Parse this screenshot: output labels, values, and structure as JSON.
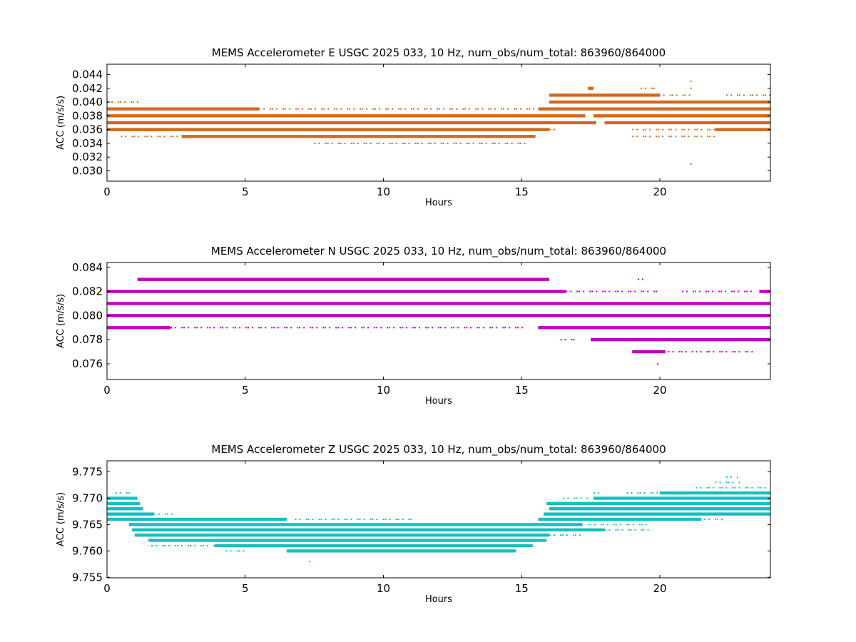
{
  "chart_data": [
    {
      "type": "scatter",
      "title": "MEMS Accelerometer E USGC 2025 033, 10 Hz, num_obs/num_total: 863960/864000",
      "xlabel": "Hours",
      "ylabel": "ACC (m/s/s)",
      "xlim": [
        0,
        24
      ],
      "ylim": [
        0.0285,
        0.0455
      ],
      "x_ticks": [
        0,
        5,
        10,
        15,
        20
      ],
      "y_ticks": [
        0.03,
        0.032,
        0.034,
        0.036,
        0.038,
        0.04,
        0.042,
        0.044
      ],
      "y_tick_decimals": 3,
      "color": "#d2691e",
      "grid": false,
      "series": [
        {
          "segments": [
            {
              "y": 0.039,
              "x": [
                [
                  0,
                  5.5,
                  "dense"
                ],
                [
                  5.5,
                  15.5,
                  "sparse"
                ],
                [
                  15.6,
                  24,
                  "dense"
                ]
              ]
            },
            {
              "y": 0.038,
              "x": [
                [
                  0,
                  17.3,
                  "dense"
                ],
                [
                  17.6,
                  24,
                  "dense"
                ]
              ]
            },
            {
              "y": 0.037,
              "x": [
                [
                  0,
                  17.7,
                  "dense"
                ],
                [
                  18.0,
                  24,
                  "dense"
                ]
              ]
            },
            {
              "y": 0.036,
              "x": [
                [
                  0,
                  16.0,
                  "dense"
                ],
                [
                  16.0,
                  16.3,
                  "sparse"
                ],
                [
                  19.0,
                  22.5,
                  "sparse"
                ],
                [
                  22.0,
                  24,
                  "dense"
                ]
              ]
            },
            {
              "y": 0.04,
              "x": [
                [
                  0,
                  1.3,
                  "sparse"
                ],
                [
                  16.0,
                  24,
                  "dense"
                ]
              ]
            },
            {
              "y": 0.035,
              "x": [
                [
                  0.5,
                  2.7,
                  "sparse"
                ],
                [
                  2.7,
                  15.5,
                  "dense"
                ],
                [
                  19.0,
                  22.0,
                  "sparse"
                ]
              ]
            },
            {
              "y": 0.041,
              "x": [
                [
                  16.0,
                  20.0,
                  "dense"
                ],
                [
                  19.5,
                  21.2,
                  "sparse"
                ],
                [
                  22.4,
                  24,
                  "sparse"
                ]
              ]
            },
            {
              "y": 0.034,
              "x": [
                [
                  7.5,
                  15.2,
                  "sparse"
                ]
              ]
            },
            {
              "y": 0.042,
              "x": [
                [
                  17.4,
                  17.6,
                  "dense"
                ],
                [
                  19.3,
                  19.9,
                  "sparse"
                ],
                [
                  21.1,
                  21.2,
                  "sparse"
                ]
              ]
            },
            {
              "y": 0.043,
              "x": [
                [
                  21.1,
                  21.2,
                  "sparse"
                ]
              ]
            },
            {
              "y": 0.031,
              "x": [
                [
                  21.1,
                  21.2,
                  "sparse"
                ]
              ]
            }
          ]
        }
      ]
    },
    {
      "type": "scatter",
      "title": "MEMS Accelerometer N USGC 2025 033, 10 Hz, num_obs/num_total: 863960/864000",
      "xlabel": "Hours",
      "ylabel": "ACC (m/s/s)",
      "xlim": [
        0,
        24
      ],
      "ylim": [
        0.0747,
        0.0844
      ],
      "x_ticks": [
        0,
        5,
        10,
        15,
        20
      ],
      "y_ticks": [
        0.076,
        0.078,
        0.08,
        0.082,
        0.084
      ],
      "y_tick_decimals": 3,
      "color": "#bf00bf",
      "grid": false,
      "series": [
        {
          "segments": [
            {
              "y": 0.083,
              "x": [
                [
                  1.1,
                  16.0,
                  "dense"
                ],
                [
                  19.2,
                  19.5,
                  "sparse"
                ]
              ]
            },
            {
              "y": 0.082,
              "x": [
                [
                  0,
                  16.6,
                  "dense"
                ],
                [
                  16.6,
                  20.0,
                  "sparse"
                ],
                [
                  20.8,
                  23.5,
                  "sparse"
                ],
                [
                  23.6,
                  24,
                  "dense"
                ]
              ]
            },
            {
              "y": 0.081,
              "x": [
                [
                  0,
                  24,
                  "dense"
                ]
              ]
            },
            {
              "y": 0.08,
              "x": [
                [
                  0,
                  24,
                  "dense"
                ]
              ]
            },
            {
              "y": 0.079,
              "x": [
                [
                  0,
                  2.3,
                  "dense"
                ],
                [
                  2.3,
                  15.0,
                  "sparse"
                ],
                [
                  15.6,
                  24,
                  "dense"
                ]
              ]
            },
            {
              "y": 0.078,
              "x": [
                [
                  16.4,
                  17.0,
                  "sparse"
                ],
                [
                  17.5,
                  24,
                  "dense"
                ]
              ]
            },
            {
              "y": 0.077,
              "x": [
                [
                  19.0,
                  20.2,
                  "dense"
                ],
                [
                  20.3,
                  21.2,
                  "sparse"
                ],
                [
                  21.3,
                  23.4,
                  "sparse"
                ]
              ]
            },
            {
              "y": 0.076,
              "x": [
                [
                  19.9,
                  20.0,
                  "sparse"
                ]
              ]
            }
          ]
        }
      ]
    },
    {
      "type": "scatter",
      "title": "MEMS Accelerometer Z USGC 2025 033, 10 Hz, num_obs/num_total: 863960/864000",
      "xlabel": "Hours",
      "ylabel": "ACC (m/s/s)",
      "xlim": [
        0,
        24
      ],
      "ylim": [
        9.7549,
        9.7771
      ],
      "x_ticks": [
        0,
        5,
        10,
        15,
        20
      ],
      "y_ticks": [
        9.755,
        9.76,
        9.765,
        9.77,
        9.775
      ],
      "y_tick_decimals": 3,
      "color": "#17bfbf",
      "grid": false,
      "series": [
        {
          "segments": [
            {
              "y": 9.774,
              "x": [
                [
                  22.4,
                  22.8,
                  "sparse"
                ]
              ]
            },
            {
              "y": 9.773,
              "x": [
                [
                  22.0,
                  22.9,
                  "sparse"
                ]
              ]
            },
            {
              "y": 9.772,
              "x": [
                [
                  21.3,
                  24,
                  "sparse"
                ]
              ]
            },
            {
              "y": 9.771,
              "x": [
                [
                  0.3,
                  0.9,
                  "sparse"
                ],
                [
                  17.6,
                  17.8,
                  "sparse"
                ],
                [
                  18.8,
                  20.0,
                  "sparse"
                ],
                [
                  20.0,
                  24,
                  "dense"
                ]
              ]
            },
            {
              "y": 9.77,
              "x": [
                [
                  0,
                  1.1,
                  "dense"
                ],
                [
                  16.5,
                  17.4,
                  "sparse"
                ],
                [
                  17.6,
                  24,
                  "dense"
                ]
              ]
            },
            {
              "y": 9.769,
              "x": [
                [
                  0,
                  1.2,
                  "dense"
                ],
                [
                  15.9,
                  24,
                  "dense"
                ]
              ]
            },
            {
              "y": 9.768,
              "x": [
                [
                  0,
                  1.3,
                  "dense"
                ],
                [
                  16.0,
                  24,
                  "dense"
                ]
              ]
            },
            {
              "y": 9.767,
              "x": [
                [
                  0,
                  1.7,
                  "dense"
                ],
                [
                  1.7,
                  2.4,
                  "sparse"
                ],
                [
                  15.8,
                  24,
                  "dense"
                ]
              ]
            },
            {
              "y": 9.766,
              "x": [
                [
                  0,
                  6.5,
                  "dense"
                ],
                [
                  6.8,
                  11.0,
                  "sparse"
                ],
                [
                  15.6,
                  21.5,
                  "dense"
                ],
                [
                  21.6,
                  22.4,
                  "sparse"
                ]
              ]
            },
            {
              "y": 9.765,
              "x": [
                [
                  0.8,
                  17.2,
                  "dense"
                ],
                [
                  17.0,
                  19.5,
                  "sparse"
                ]
              ]
            },
            {
              "y": 9.764,
              "x": [
                [
                  0.9,
                  18.0,
                  "dense"
                ],
                [
                  18.0,
                  19.6,
                  "sparse"
                ]
              ]
            },
            {
              "y": 9.763,
              "x": [
                [
                  1.0,
                  16.0,
                  "dense"
                ],
                [
                  16.0,
                  17.2,
                  "sparse"
                ]
              ]
            },
            {
              "y": 9.762,
              "x": [
                [
                  1.5,
                  15.9,
                  "dense"
                ]
              ]
            },
            {
              "y": 9.761,
              "x": [
                [
                  1.6,
                  3.9,
                  "sparse"
                ],
                [
                  3.9,
                  15.4,
                  "dense"
                ]
              ]
            },
            {
              "y": 9.76,
              "x": [
                [
                  4.3,
                  5.0,
                  "sparse"
                ],
                [
                  6.5,
                  14.8,
                  "dense"
                ]
              ]
            },
            {
              "y": 9.758,
              "x": [
                [
                  7.3,
                  7.4,
                  "sparse"
                ]
              ]
            }
          ]
        }
      ]
    }
  ]
}
